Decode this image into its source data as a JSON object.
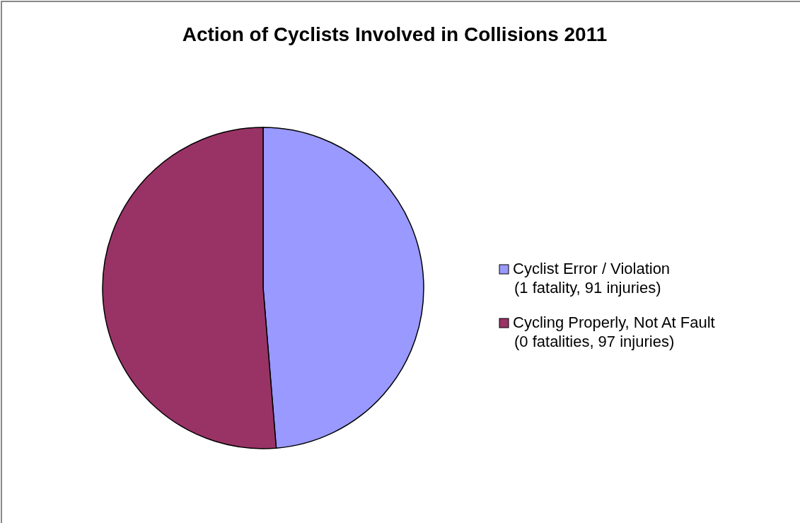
{
  "chart_data": {
    "type": "pie",
    "title": "Action of Cyclists Involved in Collisions 2011",
    "categories": [
      "Cyclist Error / Violation\n(1 fatality, 91 injuries)",
      "Cycling Properly, Not At Fault\n(0 fatalities, 97 injuries)"
    ],
    "values": [
      48.7,
      51.3
    ],
    "colors": [
      "#9999ff",
      "#993366"
    ],
    "legend": "right"
  }
}
